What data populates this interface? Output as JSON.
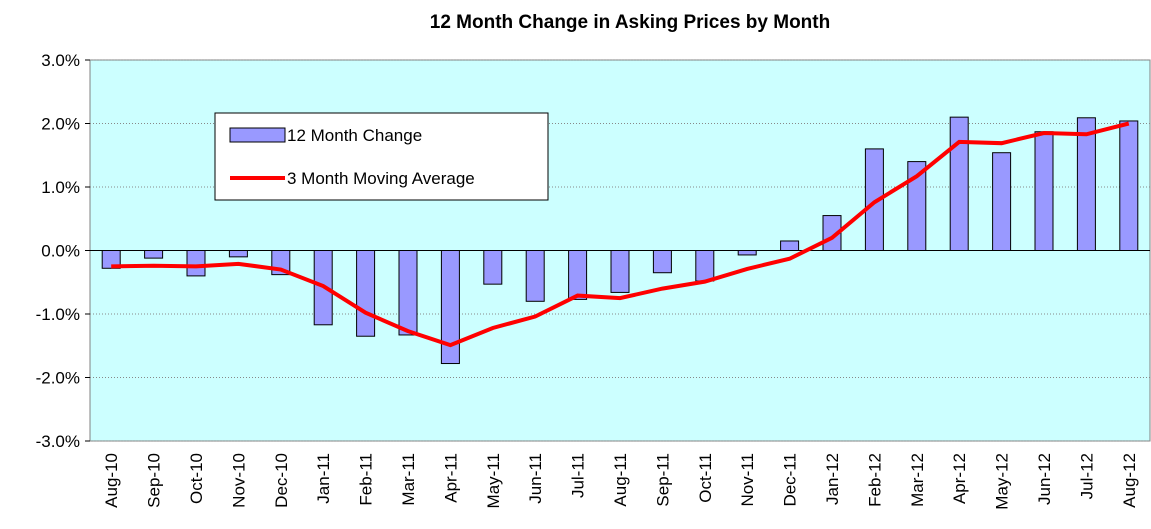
{
  "chart_data": {
    "type": "bar-line",
    "title": "12 Month Change in Asking Prices by Month",
    "categories": [
      "Aug-10",
      "Sep-10",
      "Oct-10",
      "Nov-10",
      "Dec-10",
      "Jan-11",
      "Feb-11",
      "Mar-11",
      "Apr-11",
      "May-11",
      "Jun-11",
      "Jul-11",
      "Aug-11",
      "Sep-11",
      "Oct-11",
      "Nov-11",
      "Dec-11",
      "Jan-12",
      "Feb-12",
      "Mar-12",
      "Apr-12",
      "May-12",
      "Jun-12",
      "Jul-12",
      "Aug-12"
    ],
    "series": [
      {
        "name": "12 Month Change",
        "type": "bar",
        "color": "#9999ff",
        "values": [
          -0.28,
          -0.12,
          -0.4,
          -0.1,
          -0.38,
          -1.17,
          -1.35,
          -1.33,
          -1.78,
          -0.53,
          -0.8,
          -0.77,
          -0.66,
          -0.35,
          -0.48,
          -0.07,
          0.15,
          0.55,
          1.6,
          1.4,
          2.1,
          1.54,
          1.87,
          2.09,
          2.04
        ]
      },
      {
        "name": "3 Month Moving Average",
        "type": "line",
        "color": "#ff0000",
        "values": [
          -0.25,
          -0.24,
          -0.25,
          -0.21,
          -0.3,
          -0.56,
          -0.98,
          -1.27,
          -1.49,
          -1.22,
          -1.04,
          -0.71,
          -0.75,
          -0.6,
          -0.49,
          -0.29,
          -0.13,
          0.2,
          0.76,
          1.17,
          1.71,
          1.69,
          1.85,
          1.83,
          2.0
        ]
      }
    ],
    "ylim": [
      -3,
      3
    ],
    "yticks": [
      {
        "value": -3,
        "label": "-3.0%"
      },
      {
        "value": -2,
        "label": "-2.0%"
      },
      {
        "value": -1,
        "label": "-1.0%"
      },
      {
        "value": 0,
        "label": "0.0%"
      },
      {
        "value": 1,
        "label": "1.0%"
      },
      {
        "value": 2,
        "label": "2.0%"
      },
      {
        "value": 3,
        "label": "3.0%"
      }
    ],
    "grid": true,
    "legend": "upper left"
  }
}
